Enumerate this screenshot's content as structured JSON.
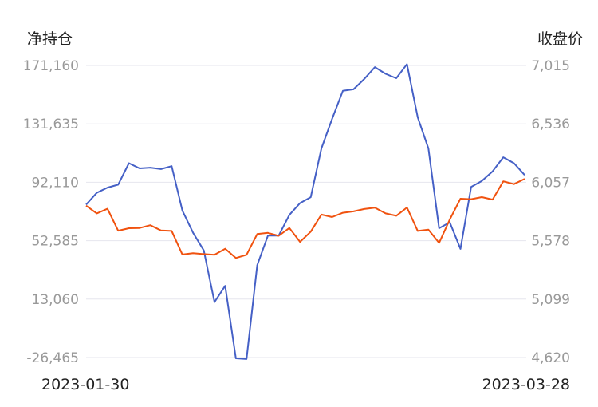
{
  "chart_data": {
    "type": "line",
    "y_left_title": "净持仓",
    "y_right_title": "收盘价",
    "left_ticks": [
      "171,160",
      "131,635",
      "92,110",
      "52,585",
      "13,060",
      "-26,465"
    ],
    "right_ticks": [
      "7,015",
      "6,536",
      "6,057",
      "5,578",
      "5,099",
      "4,620"
    ],
    "left_range": [
      -26465,
      171160
    ],
    "right_range": [
      4620,
      7015
    ],
    "x_start_label": "2023-01-30",
    "x_end_label": "2023-03-28",
    "grid": true,
    "series": [
      {
        "axis": "left",
        "color": "#4560c6",
        "values": [
          77000,
          85000,
          88500,
          90500,
          105000,
          101500,
          102000,
          101000,
          103000,
          73000,
          58000,
          46000,
          11000,
          22000,
          -27000,
          -27500,
          36000,
          56000,
          56000,
          70000,
          78000,
          82000,
          115000,
          135000,
          154000,
          155000,
          162000,
          170000,
          165500,
          162500,
          172000,
          136000,
          115000,
          61000,
          65000,
          47000,
          89000,
          93000,
          99500,
          109000,
          105000,
          97000
        ]
      },
      {
        "axis": "right",
        "color": "#f0520f",
        "values": [
          5865,
          5802,
          5840,
          5660,
          5680,
          5682,
          5705,
          5662,
          5658,
          5465,
          5475,
          5468,
          5462,
          5512,
          5436,
          5462,
          5632,
          5642,
          5618,
          5682,
          5568,
          5652,
          5792,
          5772,
          5807,
          5818,
          5838,
          5848,
          5802,
          5782,
          5850,
          5658,
          5668,
          5560,
          5752,
          5922,
          5918,
          5935,
          5915,
          6065,
          6042,
          6085
        ]
      }
    ]
  }
}
